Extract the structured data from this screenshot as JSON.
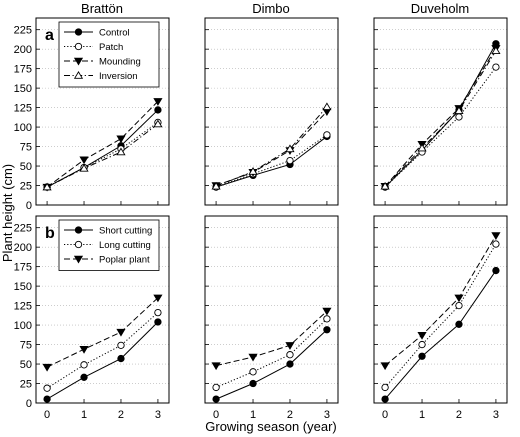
{
  "figure": {
    "column_titles": [
      "Brattön",
      "Dimbo",
      "Duveholm"
    ],
    "ylabel": "Plant height (cm)",
    "xlabel": "Growing season (year)",
    "panel_letters": [
      "a",
      "b"
    ],
    "colors": {
      "line": "#000000",
      "grid": "#b0b0b0",
      "marker_fill_open": "#ffffff"
    }
  },
  "chart_data": [
    {
      "row": "a",
      "column": "Brattön",
      "type": "line",
      "x": [
        0,
        1,
        2,
        3
      ],
      "xlim": [
        -0.3,
        3.3
      ],
      "ylim": [
        0,
        240
      ],
      "yticks": [
        0,
        25,
        50,
        75,
        100,
        125,
        150,
        175,
        200,
        225
      ],
      "xticks": [
        0,
        1,
        2,
        3
      ],
      "grid": true,
      "legend": "top-left",
      "series": [
        {
          "name": "Control",
          "values": [
            23,
            48,
            76,
            122
          ],
          "dash": "solid",
          "marker": "circle-filled"
        },
        {
          "name": "Patch",
          "values": [
            23,
            48,
            72,
            106
          ],
          "dash": "dotted",
          "marker": "circle-open"
        },
        {
          "name": "Mounding",
          "values": [
            23,
            58,
            85,
            133
          ],
          "dash": "dashed",
          "marker": "triangle-down-filled"
        },
        {
          "name": "Inversion",
          "values": [
            23,
            47,
            68,
            104
          ],
          "dash": "dashdot",
          "marker": "triangle-up-open"
        }
      ]
    },
    {
      "row": "a",
      "column": "Dimbo",
      "type": "line",
      "x": [
        0,
        1,
        2,
        3
      ],
      "xlim": [
        -0.3,
        3.3
      ],
      "ylim": [
        0,
        240
      ],
      "yticks": [
        0,
        25,
        50,
        75,
        100,
        125,
        150,
        175,
        200,
        225
      ],
      "xticks": [
        0,
        1,
        2,
        3
      ],
      "grid": true,
      "series": [
        {
          "name": "Control",
          "values": [
            23,
            38,
            52,
            88
          ],
          "dash": "solid",
          "marker": "circle-filled"
        },
        {
          "name": "Patch",
          "values": [
            23,
            40,
            57,
            90
          ],
          "dash": "dotted",
          "marker": "circle-open"
        },
        {
          "name": "Mounding",
          "values": [
            25,
            42,
            70,
            120
          ],
          "dash": "dashed",
          "marker": "triangle-down-filled"
        },
        {
          "name": "Inversion",
          "values": [
            24,
            43,
            72,
            126
          ],
          "dash": "dashdot",
          "marker": "triangle-up-open"
        }
      ]
    },
    {
      "row": "a",
      "column": "Duveholm",
      "type": "line",
      "x": [
        0,
        1,
        2,
        3
      ],
      "xlim": [
        -0.3,
        3.3
      ],
      "ylim": [
        0,
        240
      ],
      "yticks": [
        0,
        25,
        50,
        75,
        100,
        125,
        150,
        175,
        200,
        225
      ],
      "xticks": [
        0,
        1,
        2,
        3
      ],
      "grid": true,
      "series": [
        {
          "name": "Control",
          "values": [
            23,
            70,
            122,
            207
          ],
          "dash": "solid",
          "marker": "circle-filled"
        },
        {
          "name": "Patch",
          "values": [
            23,
            68,
            113,
            177
          ],
          "dash": "dotted",
          "marker": "circle-open"
        },
        {
          "name": "Mounding",
          "values": [
            24,
            78,
            124,
            201
          ],
          "dash": "dashed",
          "marker": "triangle-down-filled"
        },
        {
          "name": "Inversion",
          "values": [
            24,
            73,
            121,
            198
          ],
          "dash": "dashdot",
          "marker": "triangle-up-open"
        }
      ]
    },
    {
      "row": "b",
      "column": "Brattön",
      "type": "line",
      "x": [
        0,
        1,
        2,
        3
      ],
      "xlim": [
        -0.3,
        3.3
      ],
      "ylim": [
        0,
        240
      ],
      "yticks": [
        0,
        25,
        50,
        75,
        100,
        125,
        150,
        175,
        200,
        225
      ],
      "xticks": [
        0,
        1,
        2,
        3
      ],
      "grid": true,
      "legend": "top-left",
      "series": [
        {
          "name": "Short cutting",
          "values": [
            5,
            33,
            57,
            104
          ],
          "dash": "solid",
          "marker": "circle-filled"
        },
        {
          "name": "Long cutting",
          "values": [
            19,
            49,
            74,
            116
          ],
          "dash": "dotted",
          "marker": "circle-open"
        },
        {
          "name": "Poplar plant",
          "values": [
            46,
            69,
            91,
            135
          ],
          "dash": "dashed",
          "marker": "triangle-down-filled"
        }
      ]
    },
    {
      "row": "b",
      "column": "Dimbo",
      "type": "line",
      "x": [
        0,
        1,
        2,
        3
      ],
      "xlim": [
        -0.3,
        3.3
      ],
      "ylim": [
        0,
        240
      ],
      "yticks": [
        0,
        25,
        50,
        75,
        100,
        125,
        150,
        175,
        200,
        225
      ],
      "xticks": [
        0,
        1,
        2,
        3
      ],
      "grid": true,
      "series": [
        {
          "name": "Short cutting",
          "values": [
            5,
            25,
            50,
            94
          ],
          "dash": "solid",
          "marker": "circle-filled"
        },
        {
          "name": "Long cutting",
          "values": [
            20,
            40,
            62,
            108
          ],
          "dash": "dotted",
          "marker": "circle-open"
        },
        {
          "name": "Poplar plant",
          "values": [
            48,
            59,
            74,
            118
          ],
          "dash": "dashed",
          "marker": "triangle-down-filled"
        }
      ]
    },
    {
      "row": "b",
      "column": "Duveholm",
      "type": "line",
      "x": [
        0,
        1,
        2,
        3
      ],
      "xlim": [
        -0.3,
        3.3
      ],
      "ylim": [
        0,
        240
      ],
      "yticks": [
        0,
        25,
        50,
        75,
        100,
        125,
        150,
        175,
        200,
        225
      ],
      "xticks": [
        0,
        1,
        2,
        3
      ],
      "grid": true,
      "series": [
        {
          "name": "Short cutting",
          "values": [
            5,
            60,
            101,
            170
          ],
          "dash": "solid",
          "marker": "circle-filled"
        },
        {
          "name": "Long cutting",
          "values": [
            20,
            75,
            125,
            204
          ],
          "dash": "dotted",
          "marker": "circle-open"
        },
        {
          "name": "Poplar plant",
          "values": [
            48,
            87,
            135,
            215
          ],
          "dash": "dashed",
          "marker": "triangle-down-filled"
        }
      ]
    }
  ]
}
